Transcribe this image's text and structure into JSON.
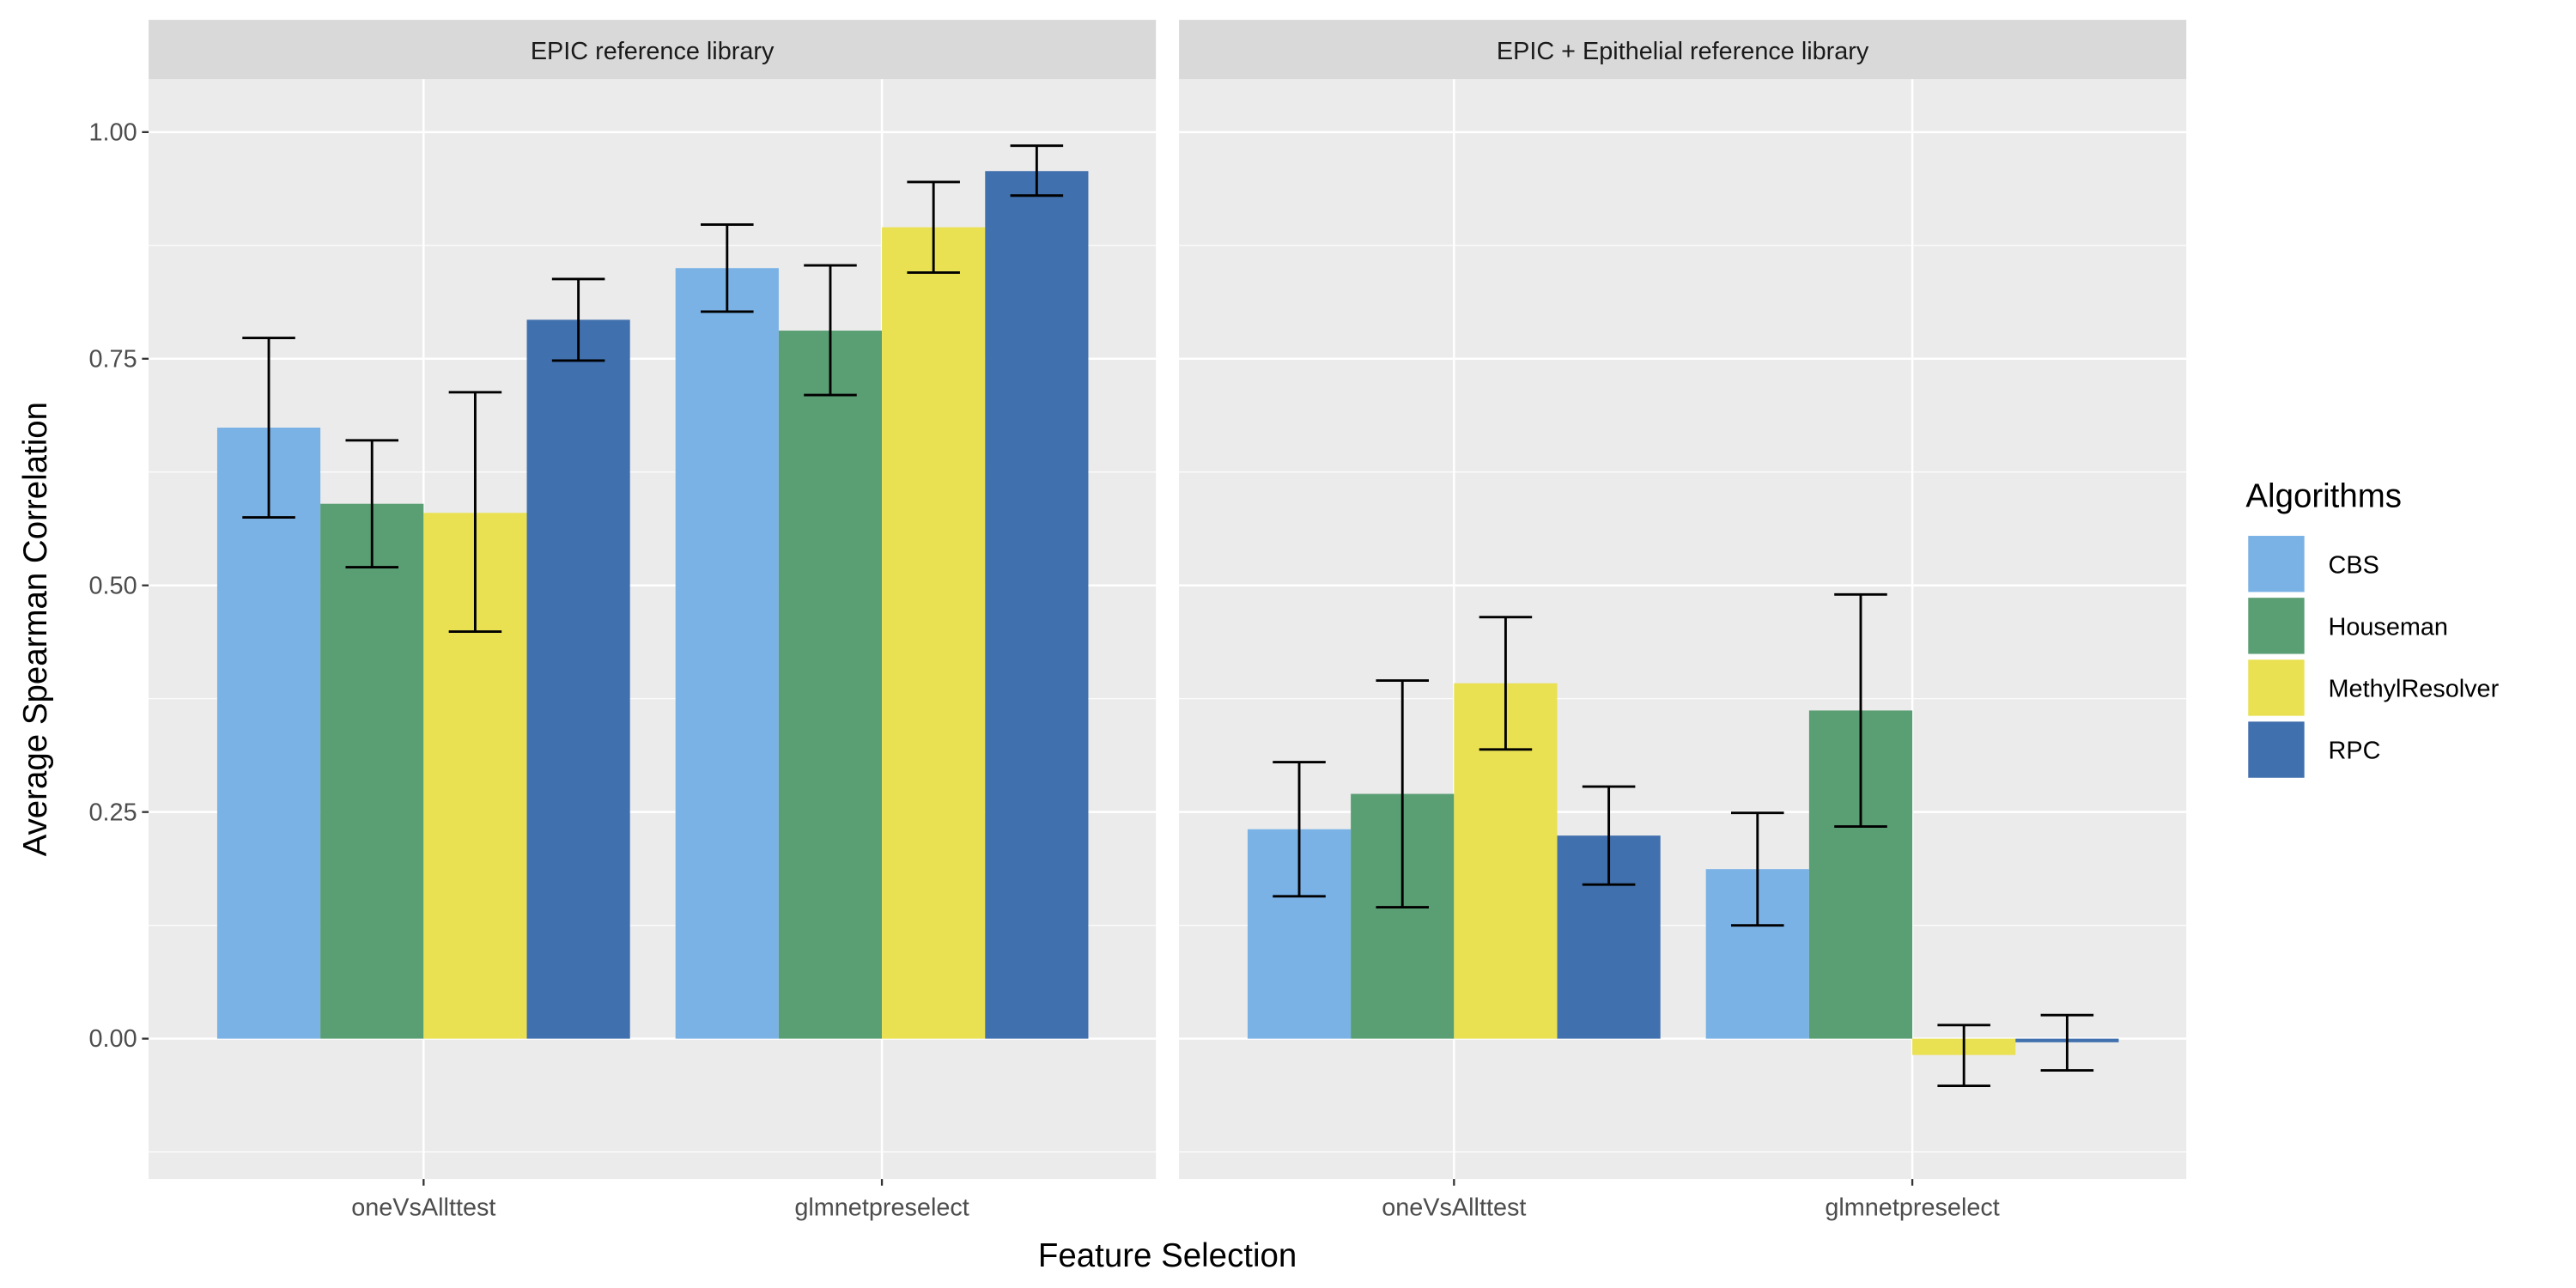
{
  "chart_data": {
    "type": "bar",
    "xlabel": "Feature Selection",
    "ylabel": "Average Spearman Correlation",
    "ylim": [
      -0.155,
      1.058
    ],
    "yticks": [
      0.0,
      0.25,
      0.5,
      0.75,
      1.0
    ],
    "ytick_labels": [
      "0.00",
      "0.25",
      "0.50",
      "0.75",
      "1.00"
    ],
    "grid": true,
    "categories": [
      "oneVsAllttest",
      "glmnetpreselect"
    ],
    "legend": {
      "title": "Algorithms",
      "placement": "right"
    },
    "series_colors": {
      "CBS": "#7ab2e6",
      "Houseman": "#5a9e73",
      "MethylResolver": "#e9e152",
      "RPC": "#4170ae"
    },
    "panels": [
      {
        "title": "EPIC reference library",
        "series": [
          {
            "name": "CBS",
            "values": [
              0.674,
              0.85
            ],
            "err_low": [
              0.575,
              0.802
            ],
            "err_high": [
              0.773,
              0.898
            ]
          },
          {
            "name": "Houseman",
            "values": [
              0.59,
              0.781
            ],
            "err_low": [
              0.52,
              0.71
            ],
            "err_high": [
              0.66,
              0.853
            ]
          },
          {
            "name": "MethylResolver",
            "values": [
              0.58,
              0.895
            ],
            "err_low": [
              0.449,
              0.845
            ],
            "err_high": [
              0.713,
              0.945
            ]
          },
          {
            "name": "RPC",
            "values": [
              0.793,
              0.957
            ],
            "err_low": [
              0.748,
              0.93
            ],
            "err_high": [
              0.838,
              0.985
            ]
          }
        ]
      },
      {
        "title": "EPIC + Epithelial reference library",
        "series": [
          {
            "name": "CBS",
            "values": [
              0.231,
              0.187
            ],
            "err_low": [
              0.157,
              0.125
            ],
            "err_high": [
              0.305,
              0.249
            ]
          },
          {
            "name": "Houseman",
            "values": [
              0.27,
              0.362
            ],
            "err_low": [
              0.145,
              0.234
            ],
            "err_high": [
              0.395,
              0.49
            ]
          },
          {
            "name": "MethylResolver",
            "values": [
              0.392,
              -0.018
            ],
            "err_low": [
              0.319,
              -0.052
            ],
            "err_high": [
              0.465,
              0.015
            ]
          },
          {
            "name": "RPC",
            "values": [
              0.224,
              -0.004
            ],
            "err_low": [
              0.17,
              -0.035
            ],
            "err_high": [
              0.278,
              0.026
            ]
          }
        ]
      }
    ]
  }
}
